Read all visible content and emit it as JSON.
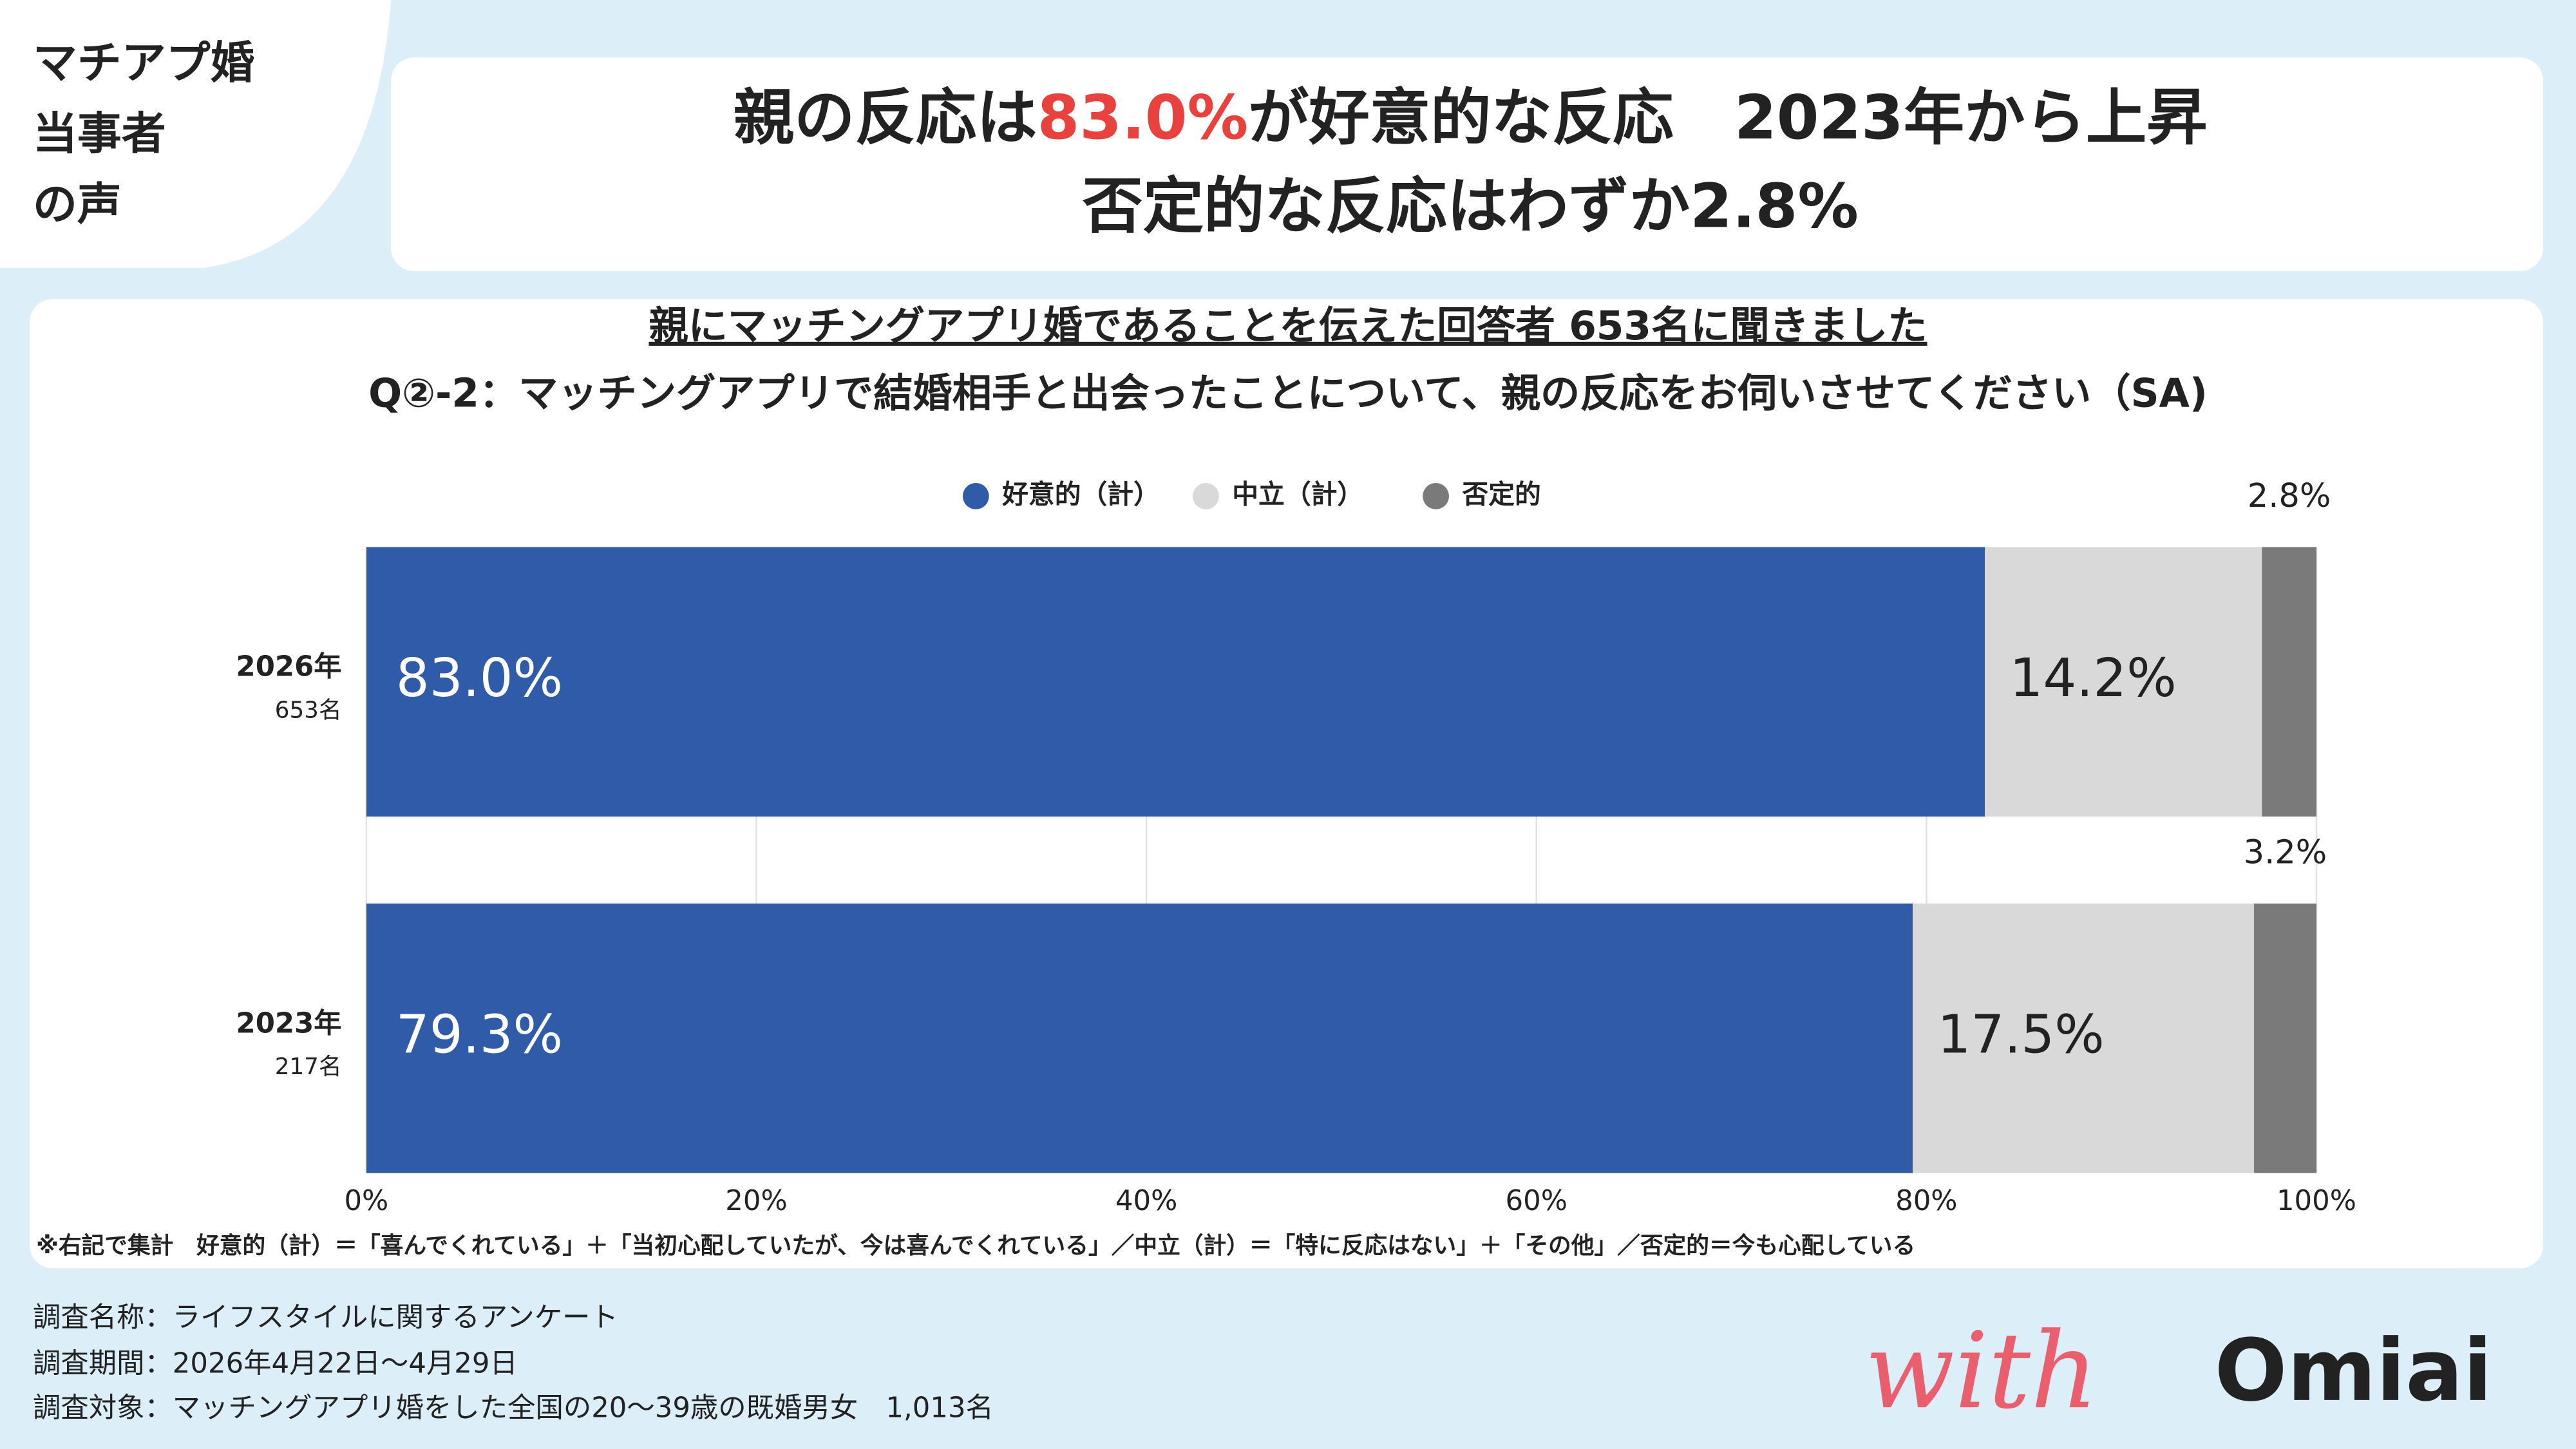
{
  "badge": [
    "マチアプ婚",
    "当事者",
    "の声"
  ],
  "headline": {
    "line1": [
      "親の反応は",
      "83.0%",
      "が好意的な反応　2023年から上昇"
    ],
    "line2": "否定的な反応はわずか2.8%"
  },
  "chart_data": {
    "type": "stacked_barh",
    "title": "親にマッチングアプリ婚であることを伝えた回答者 653名に聞きました",
    "subtitle": "Q②-2：マッチングアプリで結婚相手と出会ったことについて、親の反応をお伺いさせてください（SA)",
    "categories": [
      "2026年",
      "2023年"
    ],
    "category_notes": [
      "653名",
      "217名"
    ],
    "series": [
      {
        "name": "好意的（計）",
        "color": "#2f5ba8",
        "values": [
          83.0,
          79.3
        ],
        "value_labels": [
          "83.0%",
          "79.3%"
        ]
      },
      {
        "name": "中立（計）",
        "color": "#d9d9d9",
        "values": [
          14.2,
          17.5
        ],
        "value_labels": [
          "14.2%",
          "17.5%"
        ]
      },
      {
        "name": "否定的",
        "color": "#7a7a7a",
        "values": [
          2.8,
          3.2
        ],
        "value_labels": [
          "2.8%",
          "3.2%"
        ]
      }
    ],
    "xlim": [
      0,
      100
    ],
    "xticks": [
      {
        "value": 0,
        "label": "0%"
      },
      {
        "value": 20,
        "label": "20%"
      },
      {
        "value": 40,
        "label": "40%"
      },
      {
        "value": 60,
        "label": "60%"
      },
      {
        "value": 80,
        "label": "80%"
      },
      {
        "value": 100,
        "label": "100%"
      }
    ],
    "grid": true,
    "legend": "top",
    "footnote": "※右記で集計　好意的（計）＝「喜んでくれている」＋「当初心配していたが、今は喜んでくれている」／中立（計）＝「特に反応はない」＋「その他」／否定的＝今も心配している"
  },
  "survey": [
    "調査名称：ライフスタイルに関するアンケート",
    "調査期間：2026年4月22日～4月29日",
    "調査対象：マッチングアプリ婚をした全国の20～39歳の既婚男女　1,013名"
  ],
  "logo": {
    "script": "with",
    "brand": "Omiai"
  }
}
